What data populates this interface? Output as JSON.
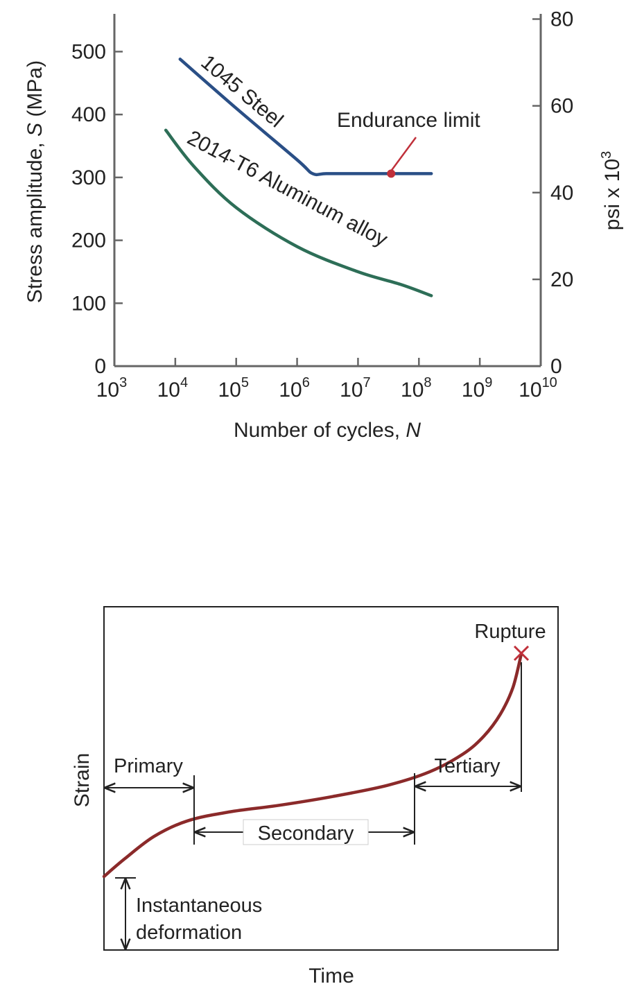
{
  "colors": {
    "steel": "#2a4f86",
    "aluminum": "#2d6e57",
    "endurance": "#c0303a",
    "creep": "#8b2a2a",
    "axis": "#666666",
    "text": "#222222"
  },
  "chart_data": [
    {
      "type": "line",
      "x_scale": "log",
      "xlabel": {
        "text": "Number of cycles, ",
        "var": "N"
      },
      "ylabel": {
        "text_before": "Stress amplitude, ",
        "var": "S",
        "text_after": " (MPa)"
      },
      "ylabel_right": {
        "text": "psi x 10",
        "sup": "3"
      },
      "xlim": [
        1000,
        10000000000
      ],
      "ylim": [
        0,
        560
      ],
      "ylim_right": [
        0,
        81.2
      ],
      "x_ticks": [
        {
          "base": "10",
          "exp": "3",
          "value": 1000
        },
        {
          "base": "10",
          "exp": "4",
          "value": 10000
        },
        {
          "base": "10",
          "exp": "5",
          "value": 100000
        },
        {
          "base": "10",
          "exp": "6",
          "value": 1000000
        },
        {
          "base": "10",
          "exp": "7",
          "value": 10000000
        },
        {
          "base": "10",
          "exp": "8",
          "value": 100000000
        },
        {
          "base": "10",
          "exp": "9",
          "value": 1000000000
        },
        {
          "base": "10",
          "exp": "10",
          "value": 10000000000
        }
      ],
      "y_ticks": [
        {
          "label": "0",
          "value": 0
        },
        {
          "label": "100",
          "value": 100
        },
        {
          "label": "200",
          "value": 200
        },
        {
          "label": "300",
          "value": 300
        },
        {
          "label": "400",
          "value": 400
        },
        {
          "label": "500",
          "value": 500
        }
      ],
      "y_ticks_right": [
        {
          "label": "0",
          "value": 0
        },
        {
          "label": "20",
          "value": 20
        },
        {
          "label": "40",
          "value": 40
        },
        {
          "label": "60",
          "value": 60
        },
        {
          "label": "80",
          "value": 80
        }
      ],
      "series": [
        {
          "name": "1045 Steel",
          "color_key": "steel",
          "x": [
            12000,
            100000,
            1000000,
            1800000,
            3000000,
            10000000,
            40000000,
            160000000
          ],
          "y": [
            488,
            410,
            328,
            306,
            306,
            306,
            306,
            306
          ]
        },
        {
          "name": "2014-T6 Aluminum alloy",
          "color_key": "aluminum",
          "x": [
            7000,
            20000,
            100000,
            1000000,
            10000000,
            50000000,
            160000000
          ],
          "y": [
            375,
            318,
            252,
            190,
            150,
            130,
            112
          ]
        }
      ],
      "annotations": [
        {
          "text": "Endurance limit",
          "x": 35000000,
          "y": 306
        }
      ]
    },
    {
      "type": "line",
      "xlabel": "Time",
      "ylabel": "Strain",
      "stages": [
        "Primary",
        "Secondary",
        "Tertiary"
      ],
      "start_label": [
        "Instantaneous",
        "deformation"
      ],
      "end_label": "Rupture",
      "curve": {
        "x": [
          0,
          0.05,
          0.12,
          0.2,
          0.3,
          0.42,
          0.55,
          0.68,
          0.78,
          0.86,
          0.91,
          0.95,
          0.98,
          1.0
        ],
        "y": [
          0,
          0.08,
          0.18,
          0.25,
          0.29,
          0.32,
          0.36,
          0.41,
          0.47,
          0.55,
          0.63,
          0.73,
          0.85,
          1.0
        ]
      }
    }
  ]
}
